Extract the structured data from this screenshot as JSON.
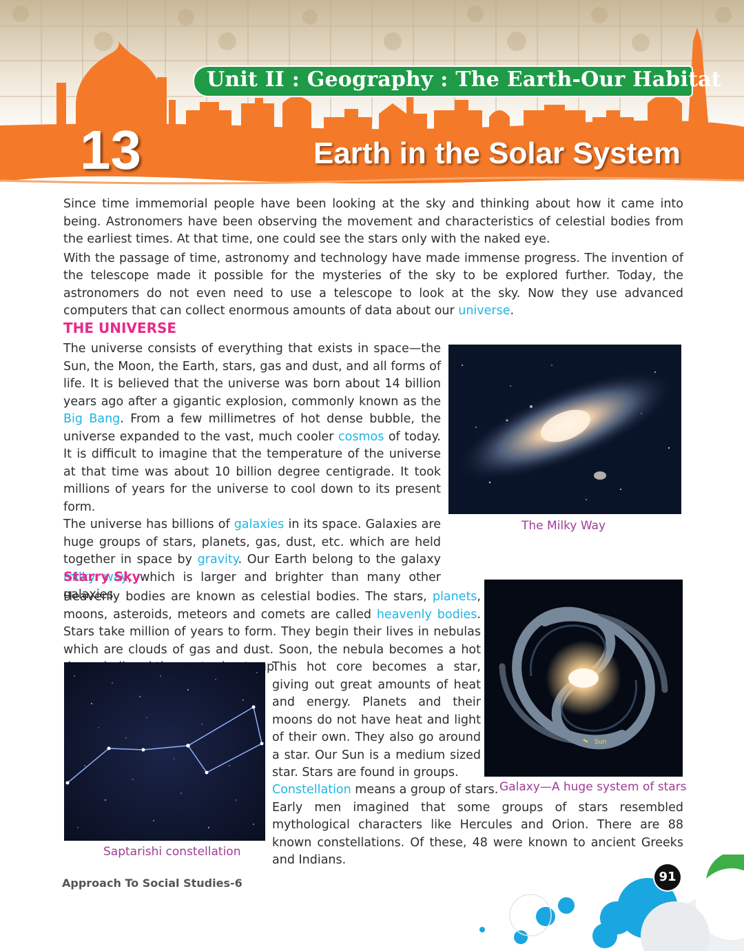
{
  "header": {
    "unit_title": "Unit II : Geography : The Earth-Our Habitat",
    "chapter_number": "13",
    "chapter_title": "Earth in the Solar System"
  },
  "intro": {
    "p1": "Since time immemorial people have been looking at the sky and thinking about how it came into being. Astronomers have been observing the movement and characteristics of celestial bodies from the earliest times. At that time, one could see the stars only with the naked eye.",
    "p2_before": "With the passage of time, astronomy and technology have made immense progress. The invention of the telescope made it possible for the mysteries of the sky to be explored further. Today, the astronomers do not even need to use a telescope to look at the sky. Now they use advanced computers that can collect enormous amounts of data about our ",
    "p2_link": "universe",
    "p2_after": "."
  },
  "universe": {
    "heading": "THE UNIVERSE",
    "p1_a": "The universe consists of everything that exists in space—the Sun, the Moon, the Earth, stars, gas and dust, and all forms of life. It is believed that the universe was born about 14 billion years ago after a gigantic explosion, commonly known as the ",
    "p1_link1": "Big Bang",
    "p1_b": ". From a few millimetres of hot dense bubble, the universe expanded to the vast, much cooler ",
    "p1_link2": "cosmos",
    "p1_c": " of today. It is difficult to imagine that the temperature of the universe at that time was about 10 billion degree centigrade. It took millions of years for the universe to cool down to its present form.",
    "p2_a": "The universe has billions of ",
    "p2_link1": "galaxies",
    "p2_b": " in its space. Galaxies are huge groups of stars, planets, gas, dust, etc. which are held together in space by ",
    "p2_link2": "gravity",
    "p2_c": ". Our Earth belong to the galaxy ",
    "p2_link3": "milky way",
    "p2_d": ", which is larger and brighter than many other galaxies."
  },
  "starry": {
    "heading": "Starry Sky",
    "p1_a": "Heavenly bodies are known as celestial bodies. The stars, ",
    "p1_link1": "planets",
    "p1_b": ", moons, asteroids, meteors and comets are called ",
    "p1_link2": "heavenly bodies",
    "p1_c": ". Stars take million of years to form. They begin their lives in nebulas which are clouds of gas and dust. Soon, the nebula becomes a hot dense ball and the centre heats up.",
    "p2": "This hot core becomes a star, giving out great amounts of heat and energy. Planets and their moons do not have heat and light of their own. They also go around a star. Our Sun is a medium sized star. Stars are found in groups.",
    "p3_link": "Constellation",
    "p3_a": " means a group of stars.",
    "p4": "Early men imagined that some groups of stars resembled mythological characters like Hercules and Orion. There are 88 known constellations. Of these, 48 were known to ancient Greeks and Indians."
  },
  "figures": {
    "milky_way_caption": "The Milky Way",
    "galaxy_caption": "Galaxy—A huge system of stars",
    "galaxy_sun_label": "Sun",
    "saptarishi_caption": "Saptarishi constellation"
  },
  "footer": {
    "book_title": "Approach To Social Studies-6",
    "page_number": "91"
  },
  "colors": {
    "banner_orange": "#f47a2a",
    "unit_green": "#1f9a47",
    "heading_pink": "#e62b8a",
    "link_blue": "#1fb5e6",
    "caption_purple": "#a03c96",
    "accent_cyan": "#1aa6e0"
  }
}
